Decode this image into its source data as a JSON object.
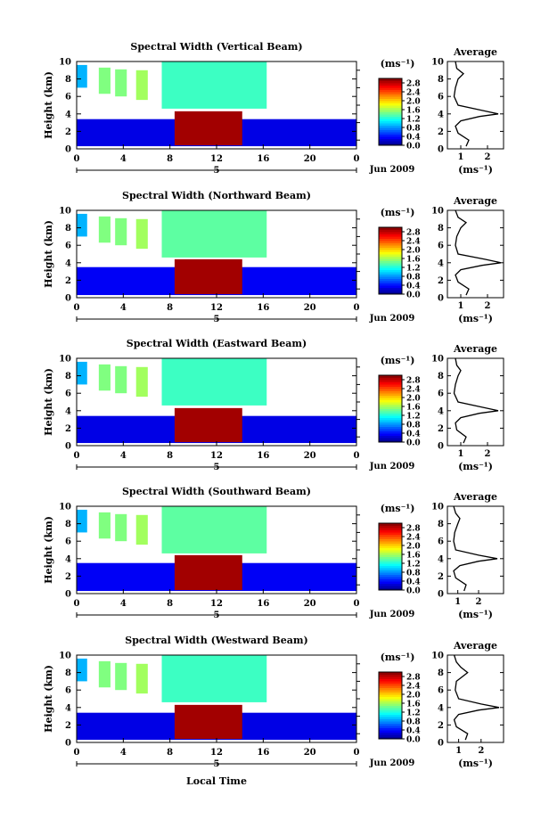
{
  "figure": {
    "xlabel": "Local Time",
    "date_label": "Jun 2009",
    "y_unit_label": "(ms⁻¹)"
  },
  "chart_data": [
    {
      "type": "heatmap",
      "title": "Spectral Width (Vertical Beam)",
      "xlabel": "Local Time",
      "ylabel": "Height (km)",
      "xticks": [
        "0",
        "4",
        "8",
        "12",
        "16",
        "20",
        "0"
      ],
      "day_label": "5",
      "yticks": [
        "0",
        "2",
        "4",
        "6",
        "8",
        "10"
      ],
      "xlim": [
        0,
        24
      ],
      "ylim": [
        0,
        10
      ],
      "colorbar": {
        "label": "(ms⁻¹)",
        "ticks": [
          "0.0",
          "0.4",
          "0.8",
          "1.2",
          "1.6",
          "2.0",
          "2.4",
          "2.8"
        ],
        "range": [
          0,
          3.0
        ]
      },
      "regions": [
        {
          "x": [
            0.0,
            24.0
          ],
          "y": [
            0.3,
            3.4
          ],
          "value": 0.3
        },
        {
          "x": [
            8.4,
            14.2
          ],
          "y": [
            0.4,
            4.3
          ],
          "value": 2.9
        },
        {
          "x": [
            7.3,
            16.3
          ],
          "y": [
            4.6,
            10.0
          ],
          "value": 1.3
        },
        {
          "x": [
            1.9,
            2.9
          ],
          "y": [
            6.3,
            9.3
          ],
          "value": 1.5
        },
        {
          "x": [
            3.3,
            4.3
          ],
          "y": [
            6.0,
            9.1
          ],
          "value": 1.5
        },
        {
          "x": [
            5.1,
            6.1
          ],
          "y": [
            5.6,
            9.0
          ],
          "value": 1.6
        },
        {
          "x": [
            0.0,
            0.9
          ],
          "y": [
            7.0,
            9.6
          ],
          "value": 0.9
        }
      ],
      "average_panel": {
        "title": "Average",
        "xlabel": "(ms⁻¹)",
        "xticks": [
          "1",
          "2"
        ],
        "xlim": [
          0.5,
          2.6
        ],
        "y": [
          0.3,
          1.0,
          1.8,
          2.6,
          3.2,
          3.7,
          4.0,
          4.4,
          5.0,
          6.0,
          7.0,
          8.0,
          8.6,
          9.2,
          10.0
        ],
        "x": [
          1.2,
          1.3,
          0.9,
          0.8,
          1.0,
          1.7,
          2.4,
          1.8,
          0.9,
          0.75,
          0.8,
          0.9,
          1.1,
          0.85,
          0.8
        ]
      }
    },
    {
      "type": "heatmap",
      "title": "Spectral Width (Northward Beam)",
      "xlabel": "Local Time",
      "ylabel": "Height (km)",
      "xticks": [
        "0",
        "4",
        "8",
        "12",
        "16",
        "20",
        "0"
      ],
      "day_label": "5",
      "yticks": [
        "0",
        "2",
        "4",
        "6",
        "8",
        "10"
      ],
      "xlim": [
        0,
        24
      ],
      "ylim": [
        0,
        10
      ],
      "colorbar": {
        "label": "(ms⁻¹)",
        "ticks": [
          "0.0",
          "0.4",
          "0.8",
          "1.2",
          "1.6",
          "2.0",
          "2.4",
          "2.8"
        ],
        "range": [
          0,
          3.0
        ]
      },
      "regions": [
        {
          "x": [
            0.0,
            24.0
          ],
          "y": [
            0.3,
            3.5
          ],
          "value": 0.35
        },
        {
          "x": [
            8.4,
            14.2
          ],
          "y": [
            0.4,
            4.4
          ],
          "value": 2.9
        },
        {
          "x": [
            7.3,
            16.3
          ],
          "y": [
            4.6,
            10.0
          ],
          "value": 1.4
        },
        {
          "x": [
            1.9,
            2.9
          ],
          "y": [
            6.3,
            9.3
          ],
          "value": 1.5
        },
        {
          "x": [
            3.3,
            4.3
          ],
          "y": [
            6.0,
            9.1
          ],
          "value": 1.5
        },
        {
          "x": [
            5.1,
            6.1
          ],
          "y": [
            5.6,
            9.0
          ],
          "value": 1.6
        },
        {
          "x": [
            0.0,
            0.9
          ],
          "y": [
            7.0,
            9.6
          ],
          "value": 0.9
        }
      ],
      "average_panel": {
        "title": "Average",
        "xlabel": "(ms⁻¹)",
        "xticks": [
          "1",
          "2"
        ],
        "xlim": [
          0.5,
          2.6
        ],
        "y": [
          0.3,
          1.0,
          1.8,
          2.6,
          3.2,
          3.7,
          4.0,
          4.4,
          5.0,
          6.0,
          7.0,
          8.0,
          8.6,
          9.2,
          10.0
        ],
        "x": [
          1.2,
          1.3,
          0.9,
          0.8,
          1.0,
          1.8,
          2.5,
          1.9,
          0.9,
          0.8,
          0.85,
          1.0,
          1.2,
          0.9,
          0.8
        ]
      }
    },
    {
      "type": "heatmap",
      "title": "Spectral Width (Eastward Beam)",
      "xlabel": "Local Time",
      "ylabel": "Height (km)",
      "xticks": [
        "0",
        "4",
        "8",
        "12",
        "16",
        "20",
        "0"
      ],
      "day_label": "5",
      "yticks": [
        "0",
        "2",
        "4",
        "6",
        "8",
        "10"
      ],
      "xlim": [
        0,
        24
      ],
      "ylim": [
        0,
        10
      ],
      "colorbar": {
        "label": "(ms⁻¹)",
        "ticks": [
          "0.0",
          "0.4",
          "0.8",
          "1.2",
          "1.6",
          "2.0",
          "2.4",
          "2.8"
        ],
        "range": [
          0,
          3.0
        ]
      },
      "regions": [
        {
          "x": [
            0.0,
            24.0
          ],
          "y": [
            0.3,
            3.4
          ],
          "value": 0.3
        },
        {
          "x": [
            8.4,
            14.2
          ],
          "y": [
            0.4,
            4.3
          ],
          "value": 2.9
        },
        {
          "x": [
            7.3,
            16.3
          ],
          "y": [
            4.6,
            10.0
          ],
          "value": 1.3
        },
        {
          "x": [
            1.9,
            2.9
          ],
          "y": [
            6.3,
            9.3
          ],
          "value": 1.5
        },
        {
          "x": [
            3.3,
            4.3
          ],
          "y": [
            6.0,
            9.1
          ],
          "value": 1.5
        },
        {
          "x": [
            5.1,
            6.1
          ],
          "y": [
            5.6,
            9.0
          ],
          "value": 1.6
        },
        {
          "x": [
            0.0,
            0.9
          ],
          "y": [
            7.0,
            9.6
          ],
          "value": 0.9
        }
      ],
      "average_panel": {
        "title": "Average",
        "xlabel": "(ms⁻¹)",
        "xticks": [
          "1",
          "2"
        ],
        "xlim": [
          0.5,
          2.6
        ],
        "y": [
          0.3,
          1.0,
          1.8,
          2.6,
          3.2,
          3.7,
          4.0,
          4.4,
          5.0,
          6.0,
          7.0,
          8.0,
          8.6,
          9.2,
          10.0
        ],
        "x": [
          1.1,
          1.2,
          0.85,
          0.8,
          1.0,
          1.7,
          2.4,
          1.8,
          0.9,
          0.75,
          0.8,
          0.9,
          1.0,
          0.85,
          0.8
        ]
      }
    },
    {
      "type": "heatmap",
      "title": "Spectral Width (Southward Beam)",
      "xlabel": "Local Time",
      "ylabel": "Height (km)",
      "xticks": [
        "0",
        "4",
        "8",
        "12",
        "16",
        "20",
        "0"
      ],
      "day_label": "5",
      "yticks": [
        "0",
        "2",
        "4",
        "6",
        "8",
        "10"
      ],
      "xlim": [
        0,
        24
      ],
      "ylim": [
        0,
        10
      ],
      "colorbar": {
        "label": "(ms⁻¹)",
        "ticks": [
          "0.0",
          "0.4",
          "0.8",
          "1.2",
          "1.6",
          "2.0",
          "2.4",
          "2.8"
        ],
        "range": [
          0,
          3.0
        ]
      },
      "regions": [
        {
          "x": [
            0.0,
            24.0
          ],
          "y": [
            0.3,
            3.5
          ],
          "value": 0.35
        },
        {
          "x": [
            8.4,
            14.2
          ],
          "y": [
            0.4,
            4.4
          ],
          "value": 2.9
        },
        {
          "x": [
            7.3,
            16.3
          ],
          "y": [
            4.6,
            10.0
          ],
          "value": 1.4
        },
        {
          "x": [
            1.9,
            2.9
          ],
          "y": [
            6.3,
            9.3
          ],
          "value": 1.5
        },
        {
          "x": [
            3.3,
            4.3
          ],
          "y": [
            6.0,
            9.1
          ],
          "value": 1.5
        },
        {
          "x": [
            5.1,
            6.1
          ],
          "y": [
            5.6,
            9.0
          ],
          "value": 1.6
        },
        {
          "x": [
            0.0,
            0.9
          ],
          "y": [
            7.0,
            9.6
          ],
          "value": 0.9
        }
      ],
      "average_panel": {
        "title": "Average",
        "xlabel": "(ms⁻¹)",
        "xticks": [
          "1",
          "2"
        ],
        "xlim": [
          0.5,
          3.2
        ],
        "y": [
          0.3,
          1.0,
          1.8,
          2.6,
          3.2,
          3.7,
          4.0,
          4.4,
          5.0,
          6.0,
          7.0,
          8.0,
          8.6,
          9.2,
          10.0
        ],
        "x": [
          1.3,
          1.4,
          0.9,
          0.8,
          1.1,
          2.0,
          2.9,
          2.0,
          0.9,
          0.8,
          0.85,
          1.0,
          1.1,
          0.9,
          0.8
        ]
      }
    },
    {
      "type": "heatmap",
      "title": "Spectral Width (Westward Beam)",
      "xlabel": "Local Time",
      "ylabel": "Height (km)",
      "xticks": [
        "0",
        "4",
        "8",
        "12",
        "16",
        "20",
        "0"
      ],
      "day_label": "5",
      "yticks": [
        "0",
        "2",
        "4",
        "6",
        "8",
        "10"
      ],
      "xlim": [
        0,
        24
      ],
      "ylim": [
        0,
        10
      ],
      "colorbar": {
        "label": "(ms⁻¹)",
        "ticks": [
          "0.0",
          "0.4",
          "0.8",
          "1.2",
          "1.6",
          "2.0",
          "2.4",
          "2.8"
        ],
        "range": [
          0,
          3.0
        ]
      },
      "regions": [
        {
          "x": [
            0.0,
            24.0
          ],
          "y": [
            0.3,
            3.4
          ],
          "value": 0.3
        },
        {
          "x": [
            8.4,
            14.2
          ],
          "y": [
            0.4,
            4.3
          ],
          "value": 2.9
        },
        {
          "x": [
            7.3,
            16.3
          ],
          "y": [
            4.6,
            10.0
          ],
          "value": 1.3
        },
        {
          "x": [
            1.9,
            2.9
          ],
          "y": [
            6.3,
            9.3
          ],
          "value": 1.5
        },
        {
          "x": [
            3.3,
            4.3
          ],
          "y": [
            6.0,
            9.1
          ],
          "value": 1.5
        },
        {
          "x": [
            5.1,
            6.1
          ],
          "y": [
            5.6,
            9.0
          ],
          "value": 1.6
        },
        {
          "x": [
            0.0,
            0.9
          ],
          "y": [
            7.0,
            9.6
          ],
          "value": 0.9
        }
      ],
      "average_panel": {
        "title": "Average",
        "xlabel": "(ms⁻¹)",
        "xticks": [
          "1",
          "2"
        ],
        "xlim": [
          0.5,
          3.0
        ],
        "y": [
          0.3,
          1.0,
          1.8,
          2.6,
          3.2,
          3.7,
          4.0,
          4.4,
          5.0,
          6.0,
          7.0,
          8.0,
          8.6,
          9.2,
          10.0
        ],
        "x": [
          1.3,
          1.4,
          0.9,
          0.8,
          1.0,
          1.9,
          2.8,
          2.0,
          1.0,
          0.85,
          0.9,
          1.4,
          1.1,
          0.9,
          0.8
        ]
      }
    }
  ]
}
